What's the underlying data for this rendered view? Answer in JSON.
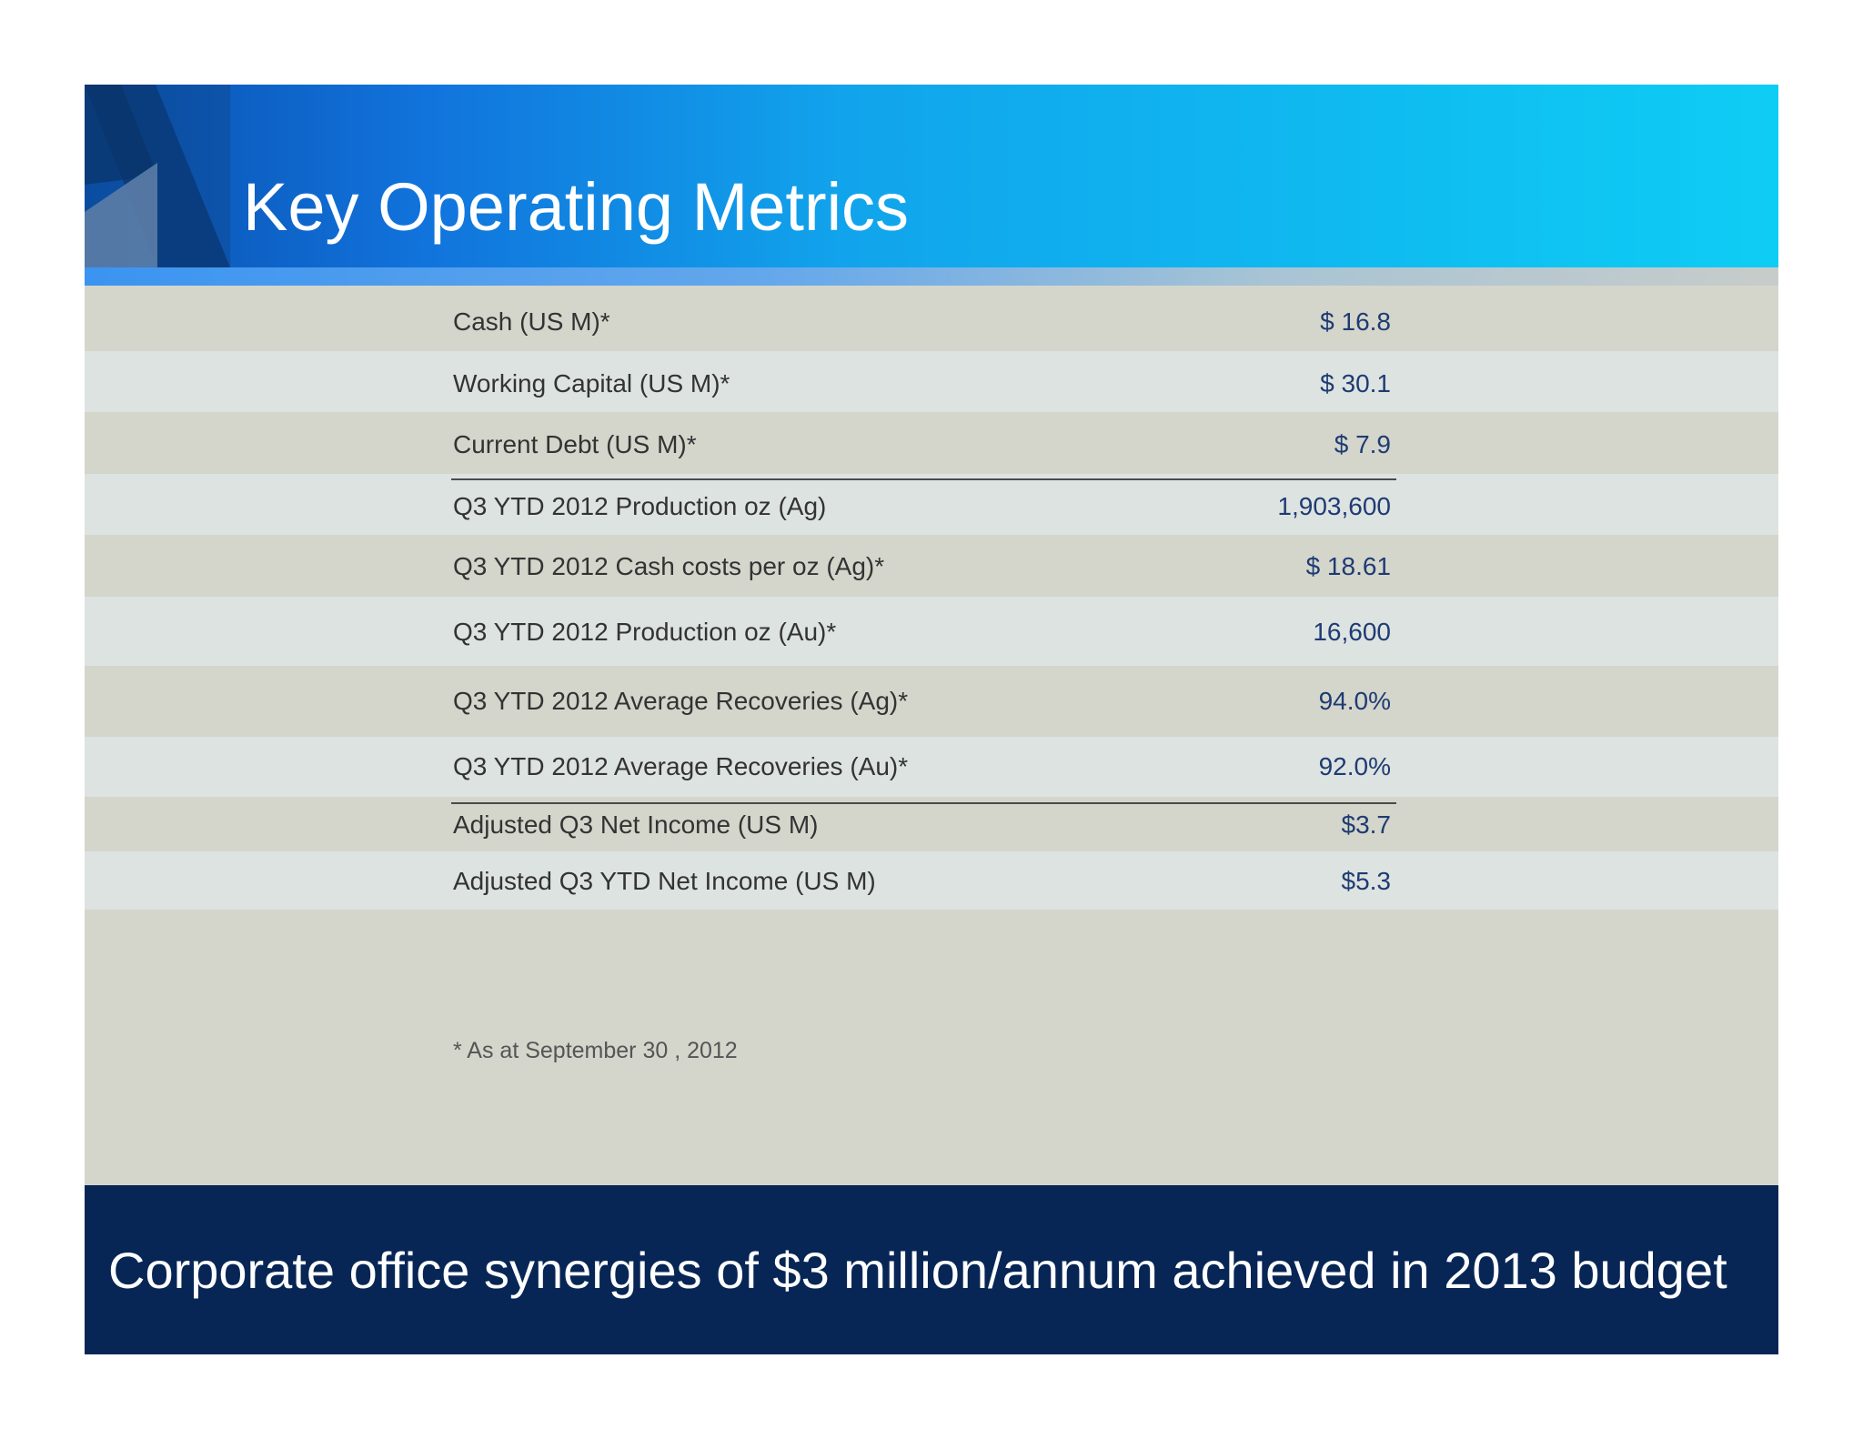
{
  "slide": {
    "title": "Key Operating Metrics",
    "metrics": [
      {
        "label": "Cash (US M)*",
        "value": "$ 16.8"
      },
      {
        "label": "Working Capital (US M)*",
        "value": "$ 30.1"
      },
      {
        "label": "Current Debt (US M)*",
        "value": "$ 7.9"
      },
      {
        "label": "Q3 YTD 2012 Production oz (Ag)",
        "value": "1,903,600"
      },
      {
        "label": "Q3 YTD 2012 Cash costs per oz (Ag)*",
        "value": "$ 18.61"
      },
      {
        "label": "Q3 YTD 2012 Production oz (Au)*",
        "value": "16,600"
      },
      {
        "label": "Q3 YTD 2012 Average Recoveries (Ag)*",
        "value": "94.0%"
      },
      {
        "label": "Q3 YTD 2012 Average Recoveries (Au)*",
        "value": "92.0%"
      },
      {
        "label": "Adjusted Q3 Net Income (US M)",
        "value": "$3.7"
      },
      {
        "label": "Adjusted Q3 YTD Net Income (US M)",
        "value": "$5.3"
      }
    ],
    "footnote": "* As at September 30 , 2012",
    "banner": "Corporate office synergies of $3 million/annum achieved in 2013 budget"
  },
  "colors": {
    "header_start": "#0a4fae",
    "header_end": "#0ecdf4",
    "banner": "#072655",
    "value_text": "#1f3b73",
    "row_dark": "#d4d6cc",
    "row_light": "#dde3e1"
  }
}
